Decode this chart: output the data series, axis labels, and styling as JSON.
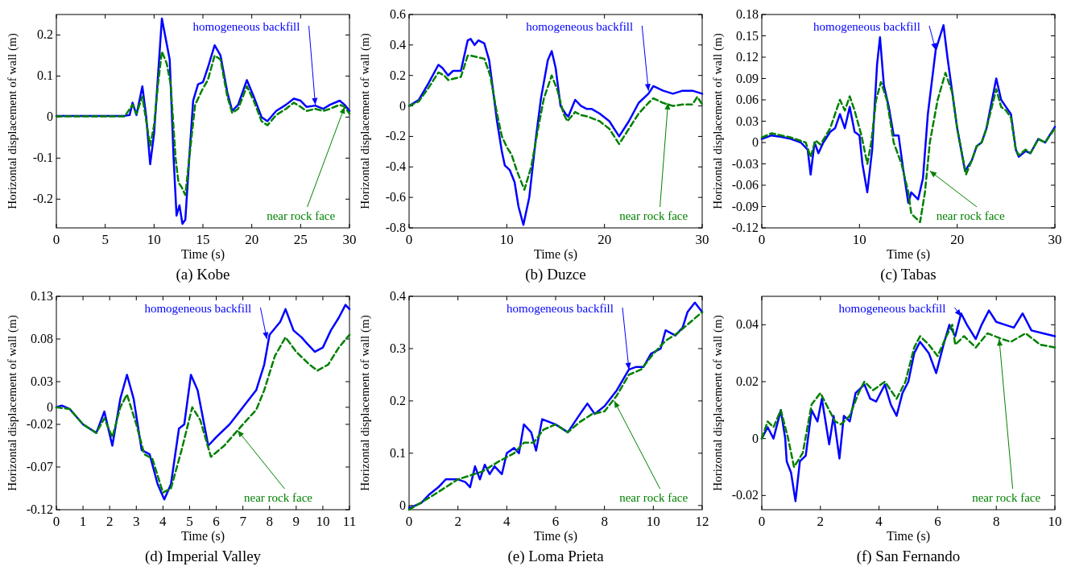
{
  "chart_data": [
    {
      "type": "line",
      "title": "(a) Kobe",
      "xlabel": "Time (s)",
      "ylabel": "Horizontal displacement of wall (m)",
      "xlim": [
        0,
        30
      ],
      "ylim": [
        -0.27,
        0.25
      ],
      "xticks": [
        0,
        5,
        10,
        15,
        20,
        25,
        30
      ],
      "yticks": [
        -0.2,
        -0.1,
        0,
        0.1,
        0.2
      ],
      "series": [
        {
          "color": "#0000ff",
          "line_style": "solid",
          "x": [
            0,
            7,
            7.5,
            7.8,
            8.2,
            8.8,
            9.2,
            9.6,
            10,
            10.4,
            10.8,
            11.2,
            11.6,
            12,
            12.3,
            12.6,
            12.9,
            13.2,
            13.6,
            14,
            14.5,
            15,
            15.5,
            16.2,
            16.8,
            17.5,
            18,
            18.6,
            19.5,
            20.2,
            21,
            21.6,
            22.5,
            23.5,
            24.3,
            25,
            25.6,
            26.5,
            27.3,
            28,
            29,
            29.5,
            30
          ],
          "values": [
            0.003,
            0.003,
            0.005,
            0.035,
            0.005,
            0.075,
            0,
            -0.115,
            -0.04,
            0.1,
            0.24,
            0.19,
            0.14,
            -0.1,
            -0.24,
            -0.215,
            -0.26,
            -0.25,
            -0.1,
            0.04,
            0.08,
            0.085,
            0.12,
            0.175,
            0.15,
            0.06,
            0.015,
            0.03,
            0.09,
            0.05,
            0,
            -0.01,
            0.015,
            0.03,
            0.045,
            0.04,
            0.025,
            0.028,
            0.02,
            0.03,
            0.04,
            0.03,
            0.015
          ]
        },
        {
          "color": "#008000",
          "line_style": "dashed",
          "x": [
            0,
            7,
            7.8,
            8.2,
            8.8,
            9.6,
            10,
            10.4,
            10.8,
            11.3,
            11.7,
            12.2,
            12.5,
            12.8,
            13.2,
            13.6,
            14.2,
            15,
            15.5,
            16.2,
            16.8,
            17.5,
            18,
            18.6,
            19.5,
            20.2,
            21,
            21.6,
            22.5,
            23.5,
            24.3,
            25,
            25.6,
            26.5,
            27.3,
            28,
            29,
            29.5,
            30
          ],
          "values": [
            0.002,
            0.002,
            0.03,
            0.008,
            0.05,
            -0.07,
            -0.02,
            0.08,
            0.16,
            0.13,
            0.08,
            -0.1,
            -0.16,
            -0.17,
            -0.19,
            -0.1,
            0.03,
            0.07,
            0.09,
            0.15,
            0.14,
            0.05,
            0.01,
            0.02,
            0.075,
            0.04,
            -0.01,
            -0.02,
            0.005,
            0.02,
            0.035,
            0.025,
            0.015,
            0.02,
            0.015,
            0.02,
            0.03,
            0.025,
            0.008
          ]
        }
      ],
      "annotations": [
        {
          "text": "homogeneous backfill",
          "x": 26.5,
          "y": 0.03
        },
        {
          "text": "near rock face",
          "x": 29.5,
          "y": 0.025
        }
      ]
    },
    {
      "type": "line",
      "title": "(b) Duzce",
      "xlabel": "Time (s)",
      "ylabel": "Horizontal displacement of wall (m)",
      "xlim": [
        0,
        30
      ],
      "ylim": [
        -0.8,
        0.6
      ],
      "xticks": [
        0,
        10,
        20,
        30
      ],
      "yticks": [
        -0.8,
        -0.6,
        -0.4,
        -0.2,
        0,
        0.2,
        0.4,
        0.6
      ],
      "series": [
        {
          "color": "#0000ff",
          "line_style": "solid",
          "x": [
            0,
            1,
            2,
            3,
            3.4,
            4,
            4.5,
            5.3,
            6,
            6.3,
            6.7,
            7.1,
            7.7,
            8.2,
            9,
            9.5,
            9.8,
            10.3,
            10.8,
            11.2,
            11.7,
            12.3,
            13,
            13.5,
            14.2,
            14.6,
            15,
            15.5,
            16,
            16.3,
            17,
            17.6,
            18.2,
            18.7,
            19.5,
            20.5,
            21.5,
            22.5,
            23.5,
            24.5,
            25,
            26,
            27,
            28,
            29,
            30
          ],
          "values": [
            0,
            0.04,
            0.15,
            0.27,
            0.25,
            0.2,
            0.23,
            0.23,
            0.43,
            0.44,
            0.4,
            0.43,
            0.41,
            0.3,
            -0.1,
            -0.3,
            -0.39,
            -0.42,
            -0.5,
            -0.66,
            -0.78,
            -0.6,
            -0.2,
            0.05,
            0.3,
            0.36,
            0.25,
            0,
            -0.05,
            -0.07,
            0.04,
            0,
            -0.02,
            -0.02,
            -0.05,
            -0.1,
            -0.2,
            -0.1,
            0.02,
            0.08,
            0.13,
            0.1,
            0.08,
            0.1,
            0.1,
            0.08
          ]
        },
        {
          "color": "#008000",
          "line_style": "dashed",
          "x": [
            0,
            1,
            2,
            3,
            3.6,
            4,
            5.3,
            6,
            6.3,
            7,
            7.7,
            8.3,
            9,
            9.5,
            10,
            10.5,
            11,
            11.8,
            12.5,
            13.2,
            13.8,
            14.6,
            15.2,
            15.8,
            16.2,
            17,
            17.6,
            18.3,
            19.5,
            20.5,
            21.5,
            22.5,
            23.5,
            24.5,
            25,
            26,
            27,
            28,
            29,
            29.5,
            30
          ],
          "values": [
            0,
            0.03,
            0.12,
            0.22,
            0.2,
            0.17,
            0.19,
            0.33,
            0.33,
            0.32,
            0.31,
            0.2,
            -0.05,
            -0.2,
            -0.27,
            -0.32,
            -0.42,
            -0.55,
            -0.4,
            -0.15,
            0.05,
            0.2,
            0.1,
            -0.05,
            -0.1,
            -0.04,
            -0.06,
            -0.07,
            -0.1,
            -0.15,
            -0.25,
            -0.15,
            -0.05,
            0.02,
            0.05,
            0.02,
            0,
            0.01,
            0.01,
            0.06,
            0.01
          ]
        }
      ],
      "annotations": [
        {
          "text": "homogeneous backfill",
          "x": 24.5,
          "y": 0.1
        },
        {
          "text": "near rock face",
          "x": 26.5,
          "y": 0.02
        }
      ]
    },
    {
      "type": "line",
      "title": "(c) Tabas",
      "xlabel": "Time (s)",
      "ylabel": "Horizontal displacement of wall (m)",
      "xlim": [
        0,
        30
      ],
      "ylim": [
        -0.12,
        0.18
      ],
      "xticks": [
        0,
        10,
        20,
        30
      ],
      "yticks": [
        -0.12,
        -0.09,
        -0.06,
        -0.03,
        0,
        0.03,
        0.06,
        0.09,
        0.12,
        0.15,
        0.18
      ],
      "series": [
        {
          "color": "#0000ff",
          "line_style": "solid",
          "x": [
            0,
            1,
            2,
            3,
            4,
            4.7,
            5,
            5.4,
            5.8,
            6.3,
            7,
            7.5,
            8,
            8.5,
            9,
            9.5,
            10,
            10.3,
            10.8,
            11.3,
            11.8,
            12.1,
            12.5,
            13,
            13.5,
            14,
            14.5,
            15,
            15.3,
            16,
            16.5,
            17,
            17.8,
            18.6,
            19,
            19.5,
            20,
            20.8,
            21.5,
            22,
            22.5,
            23,
            24,
            24.5,
            25,
            25.5,
            26,
            26.3,
            27,
            27.5,
            28.3,
            29,
            30
          ],
          "values": [
            0.005,
            0.01,
            0.008,
            0.005,
            0,
            -0.01,
            -0.045,
            0,
            -0.015,
            0,
            0.015,
            0.02,
            0.04,
            0.02,
            0.05,
            0.015,
            0.01,
            -0.03,
            -0.07,
            -0.01,
            0.11,
            0.148,
            0.08,
            0.05,
            0.01,
            0.01,
            -0.04,
            -0.085,
            -0.07,
            -0.08,
            -0.05,
            0.04,
            0.13,
            0.165,
            0.12,
            0.07,
            0.02,
            -0.04,
            -0.025,
            -0.005,
            0,
            0.02,
            0.09,
            0.06,
            0.05,
            0.04,
            -0.01,
            -0.02,
            -0.012,
            -0.015,
            0.005,
            0,
            0.022
          ]
        },
        {
          "color": "#008000",
          "line_style": "dashed",
          "x": [
            0,
            1,
            2,
            3,
            4.5,
            5,
            5.5,
            6,
            7,
            8,
            8.5,
            9,
            9.5,
            10.2,
            10.8,
            11.2,
            11.7,
            12.2,
            12.8,
            13.5,
            14.3,
            15,
            15.3,
            16.2,
            16.7,
            17.2,
            18,
            18.8,
            19.5,
            20,
            20.9,
            21.5,
            22,
            22.5,
            23,
            24,
            24.5,
            25,
            25.5,
            26,
            26.3,
            27,
            27.5,
            28.3,
            29,
            30
          ],
          "values": [
            0.007,
            0.013,
            0.01,
            0.007,
            0,
            -0.02,
            0.003,
            -0.003,
            0.02,
            0.06,
            0.045,
            0.065,
            0.045,
            0.01,
            -0.03,
            0,
            0.06,
            0.085,
            0.06,
            0,
            -0.03,
            -0.07,
            -0.1,
            -0.112,
            -0.07,
            0,
            0.06,
            0.098,
            0.07,
            0.02,
            -0.045,
            -0.025,
            -0.005,
            0,
            0.02,
            0.075,
            0.05,
            0.045,
            0.035,
            -0.01,
            -0.018,
            -0.01,
            -0.015,
            0.005,
            0,
            0.02
          ]
        }
      ],
      "annotations": [
        {
          "text": "homogeneous backfill",
          "x": 17.8,
          "y": 0.13
        },
        {
          "text": "near rock face",
          "x": 17.2,
          "y": -0.04
        }
      ]
    },
    {
      "type": "line",
      "title": "(d) Imperial Valley",
      "xlabel": "Time (s)",
      "ylabel": "Horizontal displacement of wall (m)",
      "xlim": [
        0,
        11
      ],
      "ylim": [
        -0.12,
        0.13
      ],
      "xticks": [
        0,
        1,
        2,
        3,
        4,
        5,
        6,
        7,
        8,
        9,
        10,
        11
      ],
      "yticks": [
        -0.12,
        -0.07,
        -0.02,
        0,
        0.03,
        0.08,
        0.13
      ],
      "series": [
        {
          "color": "#0000ff",
          "line_style": "solid",
          "x": [
            0,
            0.2,
            0.5,
            1,
            1.5,
            1.8,
            2.1,
            2.4,
            2.65,
            2.9,
            3.2,
            3.5,
            3.8,
            4.05,
            4.3,
            4.6,
            4.8,
            5.05,
            5.3,
            5.7,
            6,
            6.5,
            7,
            7.5,
            7.8,
            8,
            8.4,
            8.6,
            8.9,
            9.2,
            9.4,
            9.7,
            10,
            10.3,
            10.6,
            10.85,
            11
          ],
          "values": [
            0,
            0.002,
            -0.002,
            -0.02,
            -0.03,
            -0.005,
            -0.045,
            0.01,
            0.038,
            0.01,
            -0.05,
            -0.055,
            -0.09,
            -0.108,
            -0.09,
            -0.025,
            -0.02,
            0.038,
            0.02,
            -0.045,
            -0.035,
            -0.02,
            0,
            0.02,
            0.05,
            0.085,
            0.1,
            0.115,
            0.09,
            0.082,
            0.075,
            0.065,
            0.07,
            0.09,
            0.105,
            0.12,
            0.115
          ]
        },
        {
          "color": "#008000",
          "line_style": "dashed",
          "x": [
            0,
            0.5,
            1,
            1.5,
            1.8,
            2.1,
            2.4,
            2.65,
            3,
            3.3,
            3.6,
            4,
            4.3,
            4.7,
            5.1,
            5.4,
            5.8,
            6.3,
            7,
            7.5,
            7.8,
            8.2,
            8.6,
            9,
            9.5,
            9.8,
            10.2,
            10.6,
            11
          ],
          "values": [
            0,
            -0.002,
            -0.02,
            -0.03,
            -0.013,
            -0.035,
            0,
            0.015,
            -0.02,
            -0.055,
            -0.06,
            -0.1,
            -0.095,
            -0.05,
            0,
            -0.015,
            -0.058,
            -0.045,
            -0.02,
            -0.003,
            0.02,
            0.06,
            0.082,
            0.065,
            0.05,
            0.043,
            0.05,
            0.07,
            0.085
          ]
        }
      ],
      "annotations": [
        {
          "text": "homogeneous backfill",
          "x": 7.9,
          "y": 0.08
        },
        {
          "text": "near rock face",
          "x": 6.8,
          "y": -0.027
        }
      ]
    },
    {
      "type": "line",
      "title": "(e) Loma Prieta",
      "xlabel": "Time (s)",
      "ylabel": "Horizontal displacement of wall (m)",
      "xlim": [
        0,
        12
      ],
      "ylim": [
        -0.008,
        0.4
      ],
      "xticks": [
        0,
        2,
        4,
        6,
        8,
        10,
        12
      ],
      "yticks": [
        0,
        0.1,
        0.2,
        0.3,
        0.4
      ],
      "series": [
        {
          "color": "#0000ff",
          "line_style": "solid",
          "x": [
            0,
            0.5,
            0.8,
            1.2,
            1.5,
            2,
            2.3,
            2.5,
            2.7,
            2.9,
            3.1,
            3.3,
            3.5,
            3.8,
            4,
            4.3,
            4.5,
            4.7,
            5,
            5.2,
            5.45,
            6,
            6.5,
            7,
            7.3,
            7.6,
            8,
            8.5,
            9,
            9.3,
            9.6,
            9.9,
            10.3,
            10.5,
            10.9,
            11.2,
            11.4,
            11.7,
            12
          ],
          "values": [
            -0.005,
            0.005,
            0.02,
            0.035,
            0.05,
            0.05,
            0.045,
            0.035,
            0.075,
            0.05,
            0.078,
            0.06,
            0.075,
            0.06,
            0.1,
            0.11,
            0.1,
            0.155,
            0.14,
            0.105,
            0.165,
            0.155,
            0.14,
            0.175,
            0.195,
            0.175,
            0.19,
            0.22,
            0.26,
            0.265,
            0.265,
            0.29,
            0.3,
            0.335,
            0.325,
            0.34,
            0.37,
            0.388,
            0.37
          ]
        },
        {
          "color": "#008000",
          "line_style": "dashed",
          "x": [
            0,
            1,
            2,
            3,
            3.7,
            4.3,
            4.7,
            5.1,
            5.5,
            6,
            6.5,
            7,
            7.5,
            8,
            8.5,
            9,
            9.5,
            10,
            10.5,
            11,
            11.5,
            12
          ],
          "values": [
            -0.008,
            0.02,
            0.05,
            0.065,
            0.085,
            0.1,
            0.12,
            0.12,
            0.145,
            0.155,
            0.14,
            0.16,
            0.175,
            0.18,
            0.21,
            0.25,
            0.26,
            0.29,
            0.315,
            0.33,
            0.35,
            0.37
          ]
        }
      ],
      "annotations": [
        {
          "text": "homogeneous backfill",
          "x": 9,
          "y": 0.26
        },
        {
          "text": "near rock face",
          "x": 8.4,
          "y": 0.2
        }
      ]
    },
    {
      "type": "line",
      "title": "(f) San Fernando",
      "xlabel": "Time (s)",
      "ylabel": "Horizontal displacement of wall (m)",
      "xlim": [
        0,
        10
      ],
      "ylim": [
        -0.025,
        0.05
      ],
      "xticks": [
        0,
        2,
        4,
        6,
        8,
        10
      ],
      "yticks": [
        -0.02,
        0,
        0.02,
        0.04
      ],
      "series": [
        {
          "color": "#0000ff",
          "line_style": "solid",
          "x": [
            0,
            0.2,
            0.4,
            0.65,
            0.8,
            0.85,
            1,
            1.15,
            1.3,
            1.5,
            1.7,
            1.9,
            2.05,
            2.3,
            2.45,
            2.65,
            2.8,
            3,
            3.2,
            3.5,
            3.7,
            3.9,
            4.2,
            4.4,
            4.6,
            4.8,
            5,
            5.2,
            5.4,
            5.7,
            5.95,
            6.2,
            6.4,
            6.6,
            6.8,
            7,
            7.3,
            7.5,
            7.75,
            8,
            8.3,
            8.6,
            8.9,
            9.2,
            9.6,
            10
          ],
          "values": [
            0,
            0.004,
            0,
            0.01,
            0,
            -0.008,
            -0.012,
            -0.022,
            -0.008,
            -0.006,
            0.01,
            0.006,
            0.014,
            -0.002,
            0.008,
            -0.007,
            0.008,
            0.006,
            0.016,
            0.019,
            0.014,
            0.013,
            0.019,
            0.012,
            0.008,
            0.016,
            0.02,
            0.03,
            0.034,
            0.03,
            0.023,
            0.033,
            0.04,
            0.036,
            0.044,
            0.04,
            0.035,
            0.04,
            0.045,
            0.041,
            0.04,
            0.039,
            0.044,
            0.038,
            0.037,
            0.036
          ]
        },
        {
          "color": "#008000",
          "line_style": "dashed",
          "x": [
            0,
            0.2,
            0.4,
            0.65,
            0.9,
            1.1,
            1.4,
            1.7,
            2,
            2.2,
            2.5,
            2.7,
            3,
            3.3,
            3.5,
            3.8,
            4.2,
            4.6,
            4.9,
            5.2,
            5.4,
            5.7,
            6,
            6.3,
            6.5,
            6.6,
            6.9,
            7.3,
            7.7,
            8.2,
            8.5,
            9,
            9.5,
            10
          ],
          "values": [
            0,
            0.006,
            0.004,
            0.01,
            0,
            -0.01,
            -0.005,
            0.012,
            0.016,
            0.012,
            0.006,
            0.005,
            0.008,
            0.016,
            0.02,
            0.017,
            0.02,
            0.014,
            0.02,
            0.032,
            0.036,
            0.033,
            0.029,
            0.036,
            0.04,
            0.033,
            0.036,
            0.032,
            0.037,
            0.035,
            0.034,
            0.037,
            0.033,
            0.032
          ]
        }
      ],
      "annotations": [
        {
          "text": "homogeneous backfill",
          "x": 6.8,
          "y": 0.043
        },
        {
          "text": "near rock face",
          "x": 8.1,
          "y": 0.035
        }
      ]
    }
  ]
}
